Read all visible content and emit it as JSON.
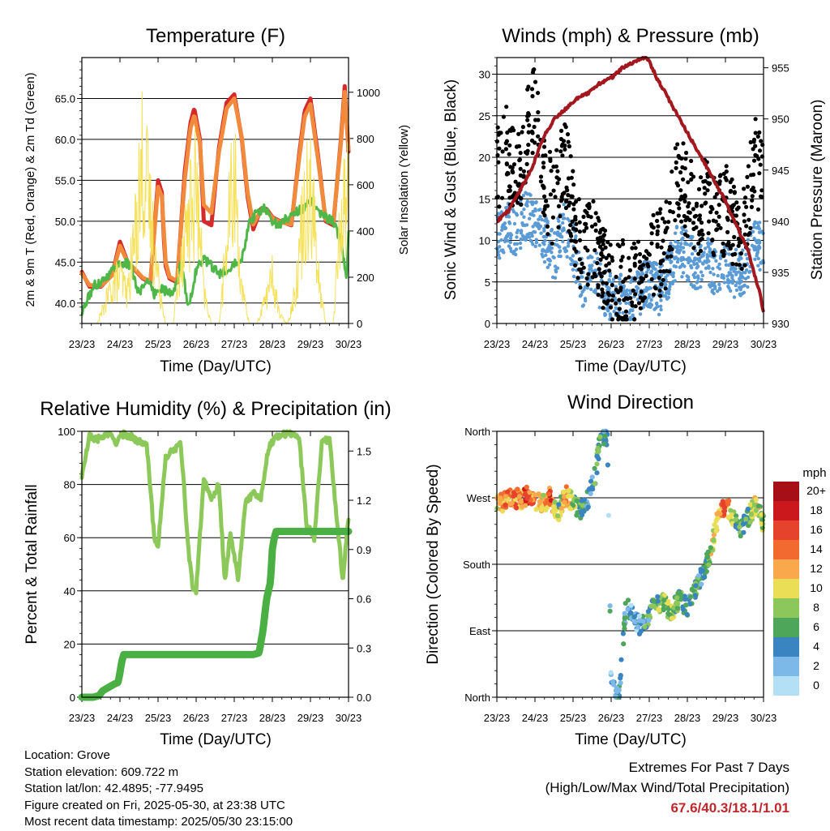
{
  "footer": {
    "location": "Location: Grove",
    "elevation": "Station elevation: 609.722 m",
    "latlon": "Station lat/lon: 42.4895; -77.9495",
    "created": "Figure created on Fri, 2025-05-30, at 23:38 UTC",
    "recent": "Most recent data timestamp: 2025/05/30 23:15:00"
  },
  "extremes": {
    "title": "Extremes For Past 7 Days",
    "subtitle": "(High/Low/Max Wind/Total Precipitation)",
    "values": "67.6/40.3/18.1/1.01",
    "color": "#c0272d"
  },
  "chart_data": [
    {
      "type": "line",
      "title": "Temperature (F)",
      "xlabel": "Time (Day/UTC)",
      "ylabel": "2m & 9m T (Red, Orange) & 2m Td (Green)",
      "y2label": "Solar Insolation (Yellow)",
      "x_ticks": [
        "23/23",
        "24/23",
        "25/23",
        "26/23",
        "27/23",
        "28/23",
        "29/23",
        "30/23"
      ],
      "xlim": [
        0,
        7
      ],
      "ylim": [
        37.5,
        70
      ],
      "y_ticks": [
        "40.0",
        "45.0",
        "50.0",
        "55.0",
        "60.0",
        "65.0"
      ],
      "y2lim": [
        0,
        1150
      ],
      "y2_ticks": [
        "0",
        "200",
        "400",
        "600",
        "800",
        "1000"
      ],
      "grid": true,
      "series": [
        {
          "key": "temp2m",
          "color": "#d42a2a",
          "x": [
            0,
            0.2,
            0.5,
            0.8,
            1.0,
            1.2,
            1.4,
            1.6,
            1.8,
            2.0,
            2.1,
            2.15,
            2.2,
            2.3,
            2.5,
            2.7,
            2.85,
            2.95,
            3.1,
            3.2,
            3.4,
            3.6,
            3.8,
            4.0,
            4.2,
            4.35,
            4.5,
            4.7,
            4.85,
            5.0,
            5.2,
            5.5,
            5.7,
            5.85,
            6.0,
            6.2,
            6.4,
            6.6,
            6.8,
            6.9,
            7.0
          ],
          "y": [
            43.8,
            42.0,
            42.0,
            43.5,
            47.5,
            45.0,
            44.0,
            43.0,
            42.5,
            55.0,
            53.5,
            48.0,
            44.5,
            43.0,
            42.5,
            56.0,
            62.0,
            63.8,
            60.0,
            50.0,
            49.5,
            59.0,
            64.5,
            65.5,
            60.0,
            53.0,
            49.0,
            51.5,
            51.5,
            50.5,
            50.0,
            49.5,
            58.0,
            63.5,
            65.0,
            58.0,
            50.0,
            49.5,
            60.0,
            66.5,
            58.5
          ]
        },
        {
          "key": "temp9m",
          "color": "#f28a3c",
          "x": [
            0,
            0.2,
            0.5,
            0.8,
            1.0,
            1.2,
            1.4,
            1.6,
            1.8,
            2.0,
            2.1,
            2.2,
            2.3,
            2.5,
            2.7,
            2.85,
            2.95,
            3.1,
            3.2,
            3.4,
            3.6,
            3.8,
            4.0,
            4.2,
            4.35,
            4.5,
            4.7,
            4.85,
            5.0,
            5.2,
            5.5,
            5.7,
            5.85,
            6.0,
            6.2,
            6.4,
            6.6,
            6.8,
            6.9,
            7.0
          ],
          "y": [
            43.6,
            42.2,
            42.1,
            43.4,
            47.0,
            45.0,
            44.1,
            43.1,
            42.7,
            54.2,
            53.0,
            45.0,
            43.2,
            42.7,
            55.0,
            61.3,
            63.0,
            59.5,
            52.0,
            51.0,
            58.5,
            63.8,
            65.0,
            60.2,
            53.5,
            49.6,
            51.3,
            51.3,
            50.4,
            49.9,
            49.6,
            57.5,
            62.8,
            64.3,
            57.5,
            50.2,
            49.8,
            59.5,
            65.8,
            58.8
          ]
        },
        {
          "key": "dewpoint",
          "color": "#4eb748",
          "x": [
            0,
            0.3,
            0.6,
            0.9,
            1.1,
            1.3,
            1.5,
            1.7,
            1.9,
            2.05,
            2.2,
            2.4,
            2.6,
            2.8,
            3.0,
            3.2,
            3.4,
            3.6,
            3.8,
            4.0,
            4.2,
            4.4,
            4.6,
            4.8,
            5.0,
            5.2,
            5.4,
            5.6,
            5.8,
            6.0,
            6.2,
            6.4,
            6.6,
            6.8,
            6.95,
            7.0
          ],
          "y": [
            38.8,
            42.0,
            43.0,
            44.5,
            45.0,
            44.5,
            41.0,
            43.0,
            41.0,
            42.0,
            41.5,
            41.0,
            45.0,
            39.5,
            44.0,
            45.5,
            44.5,
            43.5,
            44.0,
            45.0,
            45.5,
            50.0,
            51.0,
            51.5,
            50.0,
            49.5,
            50.5,
            51.0,
            51.5,
            52.5,
            51.0,
            50.5,
            50.0,
            47.5,
            43.0,
            48.5
          ]
        },
        {
          "key": "solar",
          "color": "#f5e15a",
          "axis": "y2",
          "x": [
            0,
            0.4,
            0.6,
            0.8,
            1.0,
            1.2,
            1.4,
            1.6,
            1.8,
            2.0,
            2.2,
            2.4,
            2.6,
            2.8,
            3.0,
            3.2,
            3.4,
            3.6,
            3.8,
            4.0,
            4.2,
            4.4,
            4.6,
            4.8,
            5.0,
            5.2,
            5.4,
            5.6,
            5.8,
            6.0,
            6.2,
            6.4,
            6.6,
            6.8,
            7.0
          ],
          "y": [
            0,
            0,
            120,
            250,
            300,
            200,
            600,
            1100,
            700,
            300,
            0,
            0,
            450,
            700,
            900,
            200,
            0,
            0,
            500,
            1000,
            200,
            0,
            0,
            150,
            300,
            50,
            0,
            200,
            700,
            1000,
            300,
            0,
            0,
            700,
            900
          ]
        }
      ]
    },
    {
      "type": "scatter",
      "title": "Winds (mph) & Pressure (mb)",
      "xlabel": "Time (Day/UTC)",
      "ylabel": "Sonic Wind & Gust (Blue, Black)",
      "y2label": "Station Pressure (Maroon)",
      "x_ticks": [
        "23/23",
        "24/23",
        "25/23",
        "26/23",
        "27/23",
        "28/23",
        "29/23",
        "30/23"
      ],
      "xlim": [
        0,
        7
      ],
      "ylim": [
        0,
        32
      ],
      "y_ticks": [
        "0",
        "5",
        "10",
        "15",
        "20",
        "25",
        "30"
      ],
      "y2lim": [
        930,
        956
      ],
      "y2_ticks": [
        "930",
        "935",
        "940",
        "945",
        "950",
        "955"
      ],
      "grid": true,
      "series": [
        {
          "key": "wind",
          "color": "#5b9bd5",
          "x": [
            0,
            0.25,
            0.5,
            0.75,
            1.0,
            1.25,
            1.5,
            1.75,
            2.0,
            2.25,
            2.5,
            2.75,
            3.0,
            3.25,
            3.5,
            3.75,
            4.0,
            4.25,
            4.5,
            4.75,
            5.0,
            5.25,
            5.5,
            5.75,
            6.0,
            6.25,
            6.5,
            6.75,
            7.0
          ],
          "y": [
            10,
            12,
            11,
            13,
            12,
            10,
            8,
            12,
            9,
            5,
            7,
            4,
            3,
            3,
            2,
            4,
            5,
            4,
            6,
            9,
            8,
            7,
            8,
            6,
            7,
            6,
            6,
            10,
            9
          ]
        },
        {
          "key": "gust",
          "color": "#000000",
          "x": [
            0,
            0.25,
            0.5,
            0.75,
            1.0,
            1.25,
            1.5,
            1.75,
            2.0,
            2.25,
            2.5,
            2.75,
            3.0,
            3.25,
            3.5,
            3.75,
            4.0,
            4.25,
            4.5,
            4.75,
            5.0,
            5.25,
            5.5,
            5.75,
            6.0,
            6.25,
            6.5,
            6.75,
            7.0
          ],
          "y": [
            18,
            21,
            17,
            22,
            26,
            17,
            14,
            20,
            14,
            7,
            11,
            7,
            5,
            5,
            4,
            7,
            9,
            8,
            10,
            18,
            15,
            13,
            15,
            12,
            14,
            12,
            11,
            20,
            17
          ]
        },
        {
          "key": "pressure",
          "color": "#a3171f",
          "axis": "y2",
          "x": [
            0,
            0.3,
            0.6,
            0.9,
            1.2,
            1.5,
            1.8,
            2.1,
            2.4,
            2.7,
            3.0,
            3.3,
            3.6,
            3.8,
            3.95,
            4.2,
            4.5,
            4.8,
            5.1,
            5.4,
            5.7,
            6.0,
            6.3,
            6.6,
            6.9,
            7.0
          ],
          "y": [
            940,
            941,
            943,
            945,
            948,
            950,
            951,
            952,
            952.5,
            953.5,
            954,
            955,
            955.5,
            956,
            956,
            954,
            952,
            950,
            948,
            946,
            944,
            942,
            939.5,
            937,
            933,
            931
          ]
        }
      ]
    },
    {
      "type": "line",
      "title": "Relative Humidity (%) & Precipitation (in)",
      "xlabel": "Time (Day/UTC)",
      "ylabel": "Percent & Total Rainfall",
      "x_ticks": [
        "23/23",
        "24/23",
        "25/23",
        "26/23",
        "27/23",
        "28/23",
        "29/23",
        "30/23"
      ],
      "xlim": [
        0,
        7
      ],
      "ylim": [
        0,
        100
      ],
      "y_ticks": [
        "0",
        "20",
        "40",
        "60",
        "80",
        "100"
      ],
      "y2lim": [
        0,
        1.62
      ],
      "y2_ticks": [
        "0.0",
        "0.3",
        "0.6",
        "0.9",
        "1.2",
        "1.5"
      ],
      "grid": true,
      "series": [
        {
          "key": "rh",
          "color": "#8dc95a",
          "x": [
            0,
            0.2,
            0.4,
            0.7,
            0.9,
            1.1,
            1.3,
            1.5,
            1.7,
            1.9,
            2.0,
            2.2,
            2.4,
            2.6,
            2.8,
            2.9,
            3.0,
            3.2,
            3.4,
            3.6,
            3.75,
            3.9,
            4.1,
            4.3,
            4.5,
            4.7,
            4.9,
            5.1,
            5.3,
            5.5,
            5.7,
            5.9,
            6.1,
            6.3,
            6.5,
            6.7,
            6.85,
            7.0
          ],
          "y": [
            83,
            98,
            97,
            99,
            96,
            99,
            98,
            96,
            96,
            60,
            57,
            90,
            93,
            95,
            55,
            42,
            40,
            82,
            75,
            80,
            43,
            62,
            45,
            73,
            77,
            75,
            94,
            98,
            99,
            99,
            98,
            65,
            60,
            96,
            97,
            66,
            44,
            68
          ]
        },
        {
          "key": "precip",
          "color": "#4bb043",
          "axis": "y2",
          "x": [
            0,
            0.3,
            0.45,
            0.55,
            0.7,
            0.85,
            0.95,
            1.0,
            1.05,
            1.1,
            1.2,
            1.5,
            2.0,
            3.0,
            4.0,
            4.5,
            4.65,
            4.75,
            4.85,
            4.95,
            5.0,
            5.05,
            5.1,
            5.15,
            5.2,
            5.4,
            6.0,
            7.0
          ],
          "y": [
            0,
            0,
            0.01,
            0.04,
            0.06,
            0.08,
            0.09,
            0.15,
            0.22,
            0.26,
            0.26,
            0.26,
            0.26,
            0.26,
            0.26,
            0.26,
            0.27,
            0.4,
            0.6,
            0.7,
            0.9,
            0.97,
            1.01,
            1.01,
            1.01,
            1.01,
            1.01,
            1.01
          ]
        }
      ]
    },
    {
      "type": "scatter",
      "title": "Wind Direction",
      "xlabel": "Time (Day/UTC)",
      "ylabel": "Direction (Colored By Speed)",
      "x_ticks": [
        "23/23",
        "24/23",
        "25/23",
        "26/23",
        "27/23",
        "28/23",
        "29/23",
        "30/23"
      ],
      "xlim": [
        0,
        7
      ],
      "ylim": [
        0,
        360
      ],
      "y_ticks": [
        "North",
        "East",
        "South",
        "West",
        "North"
      ],
      "legend": {
        "title": "mph",
        "position": "right",
        "labels": [
          "20+",
          "18",
          "16",
          "14",
          "12",
          "10",
          "8",
          "6",
          "4",
          "2",
          "0"
        ],
        "colors": [
          "#a50f15",
          "#cb181d",
          "#e5432b",
          "#f26a30",
          "#f9a84b",
          "#e9de55",
          "#8cc75c",
          "#4ea65a",
          "#3a84c2",
          "#7cb9e8",
          "#b3e0f5"
        ]
      },
      "series": [
        {
          "key": "direction",
          "x": [
            0,
            0.2,
            0.4,
            0.6,
            0.8,
            1.0,
            1.2,
            1.4,
            1.6,
            1.8,
            2.0,
            2.2,
            2.4,
            2.6,
            2.7,
            2.8,
            2.9,
            3.0,
            3.1,
            3.2,
            3.4,
            3.6,
            3.8,
            4.0,
            4.2,
            4.4,
            4.6,
            4.8,
            5.0,
            5.2,
            5.4,
            5.6,
            5.8,
            6.0,
            6.2,
            6.4,
            6.6,
            6.8,
            7.0
          ],
          "y": [
            262,
            265,
            270,
            268,
            272,
            268,
            262,
            272,
            248,
            275,
            262,
            255,
            270,
            305,
            345,
            355,
            350,
            20,
            5,
            0,
            130,
            105,
            95,
            110,
            130,
            125,
            115,
            135,
            120,
            145,
            170,
            190,
            245,
            260,
            245,
            230,
            245,
            260,
            235
          ],
          "speed": [
            10,
            12,
            14,
            12,
            16,
            12,
            10,
            16,
            6,
            14,
            8,
            6,
            4,
            6,
            6,
            4,
            4,
            2,
            4,
            4,
            4,
            2,
            4,
            6,
            6,
            8,
            8,
            6,
            4,
            6,
            4,
            8,
            12,
            14,
            8,
            6,
            6,
            12,
            6
          ]
        }
      ]
    }
  ]
}
